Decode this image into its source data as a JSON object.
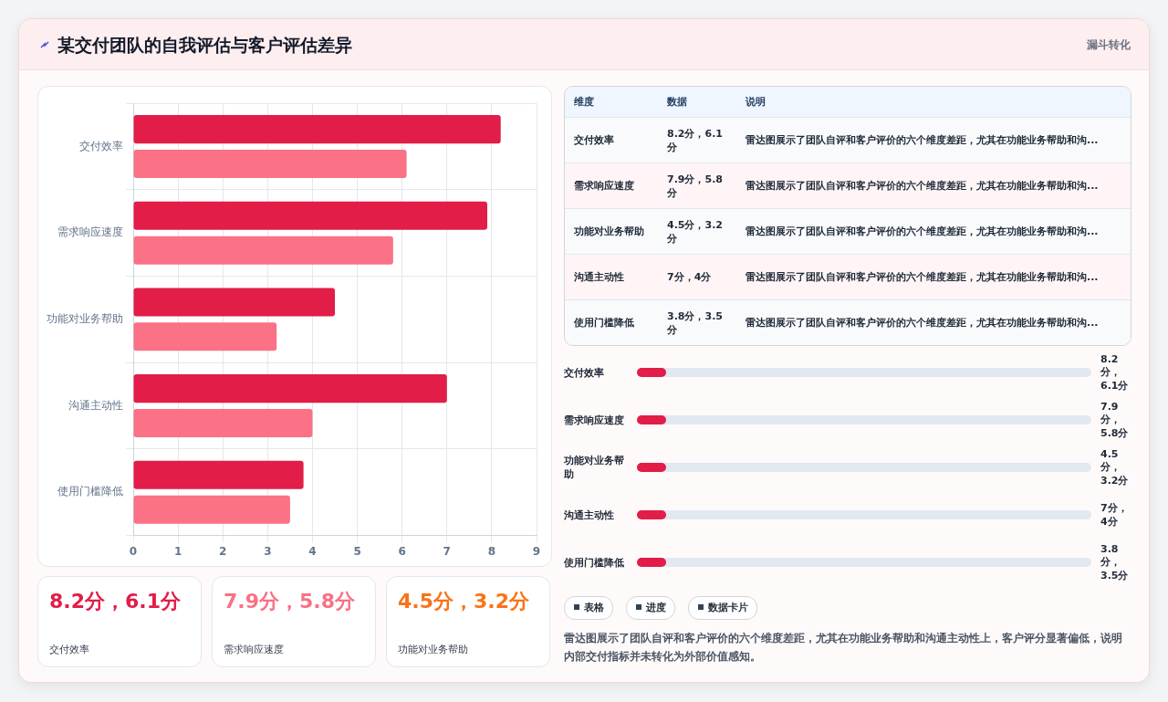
{
  "chart_data": [
    {
      "type": "bar",
      "orientation": "horizontal",
      "title": "某交付团队的自我评估与客户评估差异",
      "categories": [
        "交付效率",
        "需求响应速度",
        "功能对业务帮助",
        "沟通主动性",
        "使用门槛降低"
      ],
      "series": [
        {
          "color": "#e11d48",
          "values": [
            8.2,
            7.9,
            4.5,
            7,
            3.8
          ]
        },
        {
          "color": "#fb7185",
          "values": [
            6.1,
            5.8,
            3.2,
            4,
            3.5
          ]
        }
      ],
      "xlim": [
        0,
        9
      ],
      "xticks": [
        0,
        1,
        2,
        3,
        4,
        5,
        6,
        7,
        8,
        9
      ],
      "grid": true,
      "legend": false
    },
    {
      "type": "other",
      "categories": [
        "交付效率",
        "需求响应速度",
        "功能对业务帮助",
        "沟通主动性",
        "使用门槛降低"
      ],
      "value_labels": [
        "8.2分，6.1分",
        "7.9分，5.8分",
        "4.5分，3.2分",
        "7分，4分",
        "3.8分，3.5分"
      ],
      "annotations": [
        "维度",
        "数据",
        "说明",
        "雷达图展示了团队自评和客户评价的六个维度差距，尤其在功能业务帮助和沟...",
        "雷达图展示了团队自评和客户评价的六个维度差距，尤其在功能业务帮助和沟...",
        "雷达图展示了团队自评和客户评价的六个维度差距，尤其在功能业务帮助和沟...",
        "雷达图展示了团队自评和客户评价的六个维度差距，尤其在功能业务帮助和沟...",
        "雷达图展示了团队自评和客户评价的六个维度差距，尤其在功能业务帮助和沟...",
        "漏斗转化",
        "表格",
        "进度",
        "数据卡片",
        "雷达图展示了团队自评和客户评价的六个维度差距，尤其在功能业务帮助和沟通主动性上，客户评分显著偏低，说明内部交付指标并未转化为外部价值感知。"
      ]
    }
  ]
}
